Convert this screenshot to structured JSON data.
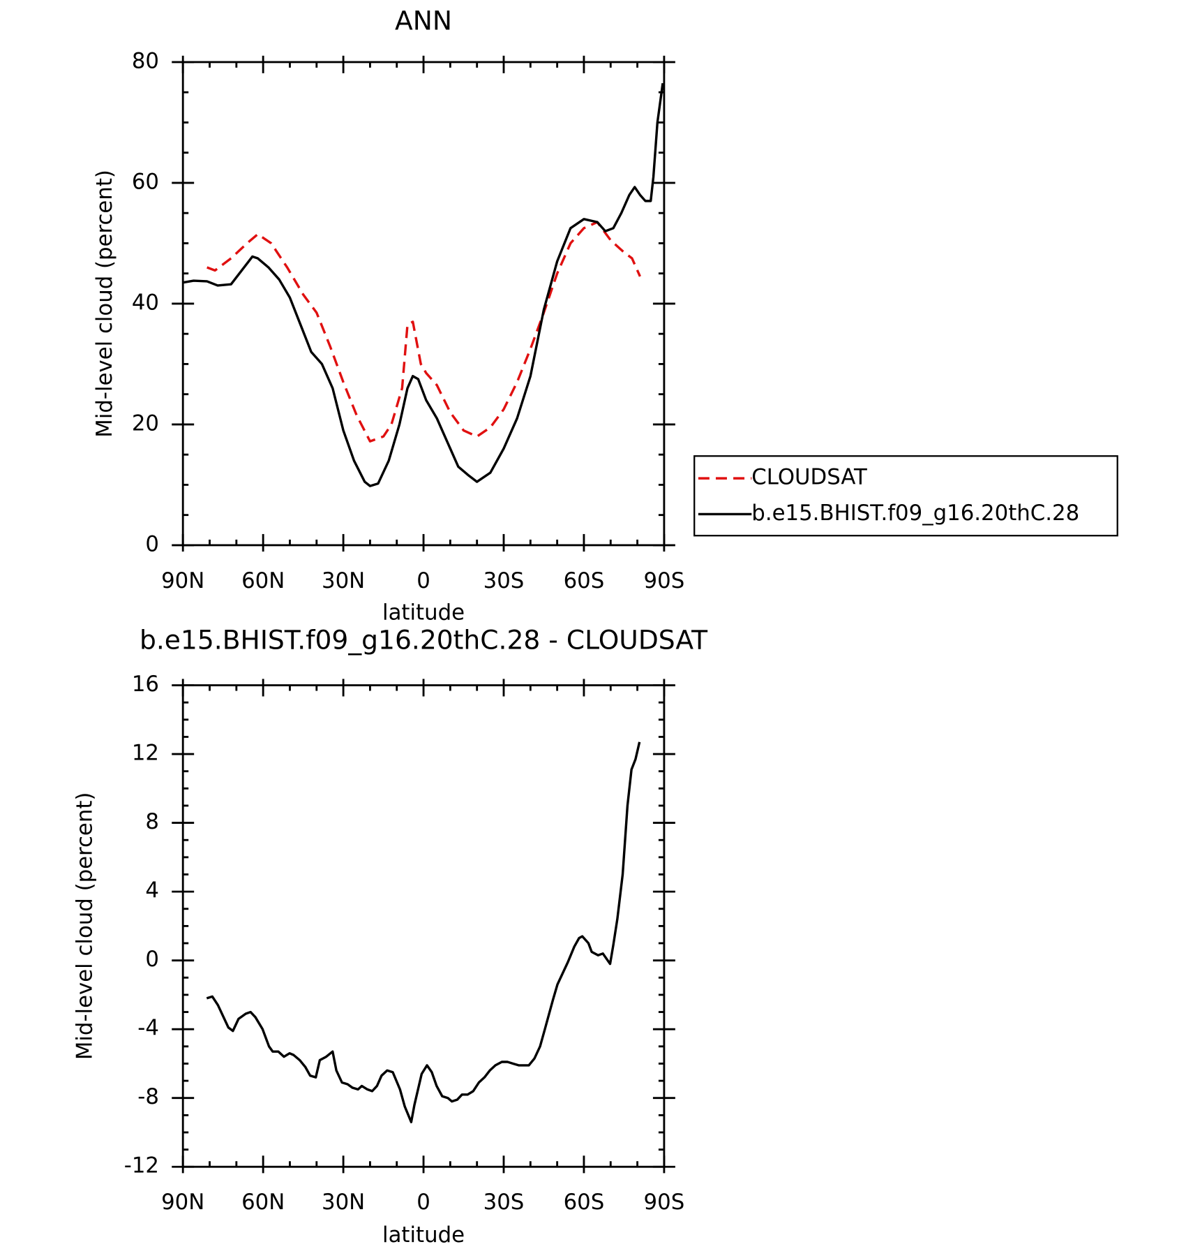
{
  "chart_data": [
    {
      "type": "line",
      "title": "ANN",
      "xlabel": "latitude",
      "ylabel": "Mid-level cloud (percent)",
      "xlim": [
        90,
        -90
      ],
      "xticks": [
        {
          "value": 90,
          "label": "90N"
        },
        {
          "value": 60,
          "label": "60N"
        },
        {
          "value": 30,
          "label": "30N"
        },
        0,
        {
          "value": -30,
          "label": "30S"
        },
        {
          "value": -60,
          "label": "60S"
        },
        {
          "value": -90,
          "label": "90S"
        }
      ],
      "minor_xticks": [
        80,
        70,
        50,
        40,
        20,
        10,
        -10,
        -20,
        -40,
        -50,
        -70,
        -80
      ],
      "ylim": [
        0,
        80
      ],
      "yticks": [
        0,
        20,
        40,
        60,
        80
      ],
      "minor_yticks": [
        5,
        10,
        15,
        25,
        30,
        35,
        45,
        50,
        55,
        65,
        70,
        75
      ],
      "legend": "outside-right",
      "series": [
        {
          "name": "CLOUDSAT",
          "color": "#e01010",
          "line_style": "dashed",
          "x": [
            81,
            78,
            72,
            66,
            62,
            57,
            51,
            45,
            40,
            35,
            30,
            25,
            20,
            15,
            12,
            8,
            6,
            4,
            1,
            -1,
            -5,
            -10,
            -15,
            -20,
            -25,
            -30,
            -35,
            -40,
            -45,
            -50,
            -55,
            -60,
            -65,
            -70,
            -75,
            -78,
            -81
          ],
          "values": [
            46,
            45.5,
            47.5,
            50,
            51.5,
            50,
            46,
            41.5,
            38.5,
            33,
            27,
            21.5,
            17.2,
            18,
            20,
            26,
            36.5,
            37,
            30,
            28.5,
            26.5,
            22,
            19,
            18,
            19.5,
            22.5,
            27,
            32.5,
            38.5,
            45,
            50,
            52.5,
            53.5,
            50.5,
            48.5,
            47.5,
            44.5
          ]
        },
        {
          "name": "b.e15.BHIST.f09_g16.20thC.28",
          "color": "#000000",
          "line_style": "solid",
          "x": [
            90,
            86,
            81,
            77,
            72,
            68,
            64,
            62,
            58,
            54,
            50,
            46,
            42,
            38,
            34,
            30,
            26,
            22,
            20,
            17,
            13,
            9,
            6,
            4,
            2,
            -1,
            -5,
            -10,
            -13,
            -17,
            -20,
            -25,
            -30,
            -35,
            -40,
            -45,
            -50,
            -55,
            -60,
            -65,
            -68,
            -71,
            -74,
            -77,
            -79,
            -81,
            -83,
            -85,
            -86,
            -87.5,
            -89.5
          ],
          "values": [
            43.5,
            43.8,
            43.7,
            43,
            43.2,
            45.5,
            47.8,
            47.5,
            46,
            44,
            41,
            36.5,
            32,
            30,
            26,
            19,
            14,
            10.5,
            9.8,
            10.2,
            14,
            20,
            26,
            28,
            27.5,
            24,
            21,
            16,
            13,
            11.5,
            10.5,
            12,
            16,
            21,
            28,
            39,
            47,
            52.5,
            54,
            53.5,
            52,
            52.5,
            55,
            58,
            59.3,
            58,
            57,
            57,
            61,
            70,
            76.5
          ]
        }
      ]
    },
    {
      "type": "line",
      "title": "b.e15.BHIST.f09_g16.20thC.28 - CLOUDSAT",
      "xlabel": "latitude",
      "ylabel": "Mid-level cloud (percent)",
      "xlim": [
        90,
        -90
      ],
      "xticks": [
        {
          "value": 90,
          "label": "90N"
        },
        {
          "value": 60,
          "label": "60N"
        },
        {
          "value": 30,
          "label": "30N"
        },
        0,
        {
          "value": -30,
          "label": "30S"
        },
        {
          "value": -60,
          "label": "60S"
        },
        {
          "value": -90,
          "label": "90S"
        }
      ],
      "minor_xticks": [
        80,
        70,
        50,
        40,
        20,
        10,
        -10,
        -20,
        -40,
        -50,
        -70,
        -80
      ],
      "ylim": [
        -12,
        16
      ],
      "yticks": [
        -12,
        -8,
        -4,
        0,
        4,
        8,
        12,
        16
      ],
      "minor_yticks": [
        -11,
        -10,
        -9,
        -7,
        -6,
        -5,
        -3,
        -2,
        -1,
        1,
        2,
        3,
        5,
        6,
        7,
        9,
        10,
        11,
        13,
        14,
        15
      ],
      "series": [
        {
          "color": "#000000",
          "line_style": "solid",
          "x": [
            81.1,
            79.0,
            76.9,
            73.0,
            71.3,
            69.2,
            66.5,
            64.7,
            62.9,
            60.2,
            57.8,
            56.4,
            54.3,
            52.2,
            50.1,
            48.6,
            46.3,
            44.2,
            42.4,
            40.3,
            38.8,
            36.4,
            34.0,
            32.6,
            30.5,
            28.4,
            26.6,
            24.5,
            23.1,
            21.0,
            19.2,
            17.4,
            15.7,
            13.6,
            11.5,
            8.8,
            7.0,
            4.6,
            3.4,
            0.7,
            -1.3,
            -3.1,
            -4.9,
            -7.0,
            -9.1,
            -10.6,
            -12.6,
            -14.4,
            -16.5,
            -18.6,
            -20.7,
            -22.8,
            -24.8,
            -26.9,
            -29.3,
            -31.4,
            -33.5,
            -35.6,
            -37.3,
            -39.4,
            -41.5,
            -43.6,
            -45.4,
            -48.4,
            -50.1,
            -52.2,
            -54.0,
            -56.4,
            -58.2,
            -59.4,
            -61.7,
            -62.9,
            -65.3,
            -67.1,
            -69.8,
            -71.0,
            -72.5,
            -74.5,
            -76.3,
            -77.8,
            -79.3,
            -80.8
          ],
          "values": [
            -2.2,
            -2.1,
            -2.6,
            -3.9,
            -4.1,
            -3.4,
            -3.1,
            -3.0,
            -3.3,
            -4.0,
            -5.0,
            -5.3,
            -5.3,
            -5.6,
            -5.4,
            -5.5,
            -5.8,
            -6.2,
            -6.7,
            -6.8,
            -5.8,
            -5.6,
            -5.3,
            -6.4,
            -7.1,
            -7.2,
            -7.4,
            -7.5,
            -7.3,
            -7.5,
            -7.6,
            -7.3,
            -6.7,
            -6.4,
            -6.5,
            -7.5,
            -8.5,
            -9.4,
            -8.4,
            -6.6,
            -6.1,
            -6.5,
            -7.3,
            -7.9,
            -8.0,
            -8.2,
            -8.1,
            -7.8,
            -7.8,
            -7.6,
            -7.1,
            -6.8,
            -6.4,
            -6.1,
            -5.9,
            -5.9,
            -6.0,
            -6.1,
            -6.1,
            -6.1,
            -5.7,
            -5.0,
            -4.0,
            -2.3,
            -1.4,
            -0.7,
            -0.1,
            0.8,
            1.3,
            1.4,
            1.0,
            0.5,
            0.3,
            0.4,
            -0.2,
            0.9,
            2.4,
            5.0,
            9.0,
            11.1,
            11.7,
            12.7
          ]
        }
      ]
    }
  ]
}
